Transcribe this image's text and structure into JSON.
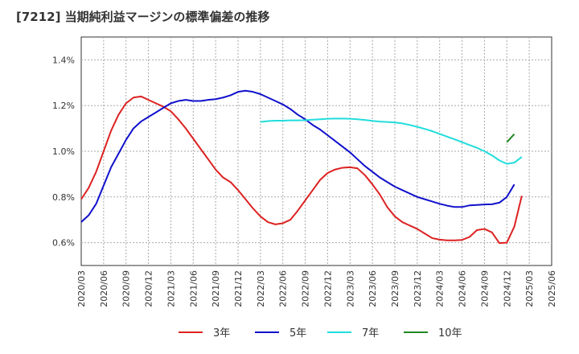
{
  "chart_data": {
    "type": "line",
    "title": "[7212]  当期純利益マージンの標準偏差の推移",
    "xlabel": "",
    "ylabel": "",
    "ylim": [
      0.5,
      1.5
    ],
    "y_ticks": [
      0.6,
      0.8,
      1.0,
      1.2,
      1.4
    ],
    "y_tick_labels": [
      "0.6%",
      "0.8%",
      "1.0%",
      "1.2%",
      "1.4%"
    ],
    "x_tick_labels": [
      "2020/03",
      "2020/06",
      "2020/09",
      "2020/12",
      "2021/03",
      "2021/06",
      "2021/09",
      "2021/12",
      "2022/03",
      "2022/06",
      "2022/09",
      "2022/12",
      "2023/03",
      "2023/06",
      "2023/09",
      "2023/12",
      "2024/03",
      "2024/06",
      "2024/09",
      "2024/12",
      "2025/03",
      "2025/06"
    ],
    "grid": true,
    "legend_position": "bottom",
    "x_start": "2020/03",
    "series": [
      {
        "name": "3年",
        "color": "#dd2222",
        "start": "2020/03",
        "values": [
          0.79,
          0.84,
          0.91,
          1.0,
          1.09,
          1.16,
          1.21,
          1.235,
          1.24,
          1.225,
          1.21,
          1.195,
          1.175,
          1.14,
          1.1,
          1.055,
          1.01,
          0.965,
          0.92,
          0.885,
          0.865,
          0.83,
          0.79,
          0.75,
          0.715,
          0.69,
          0.68,
          0.685,
          0.7,
          0.74,
          0.785,
          0.83,
          0.875,
          0.905,
          0.92,
          0.928,
          0.93,
          0.925,
          0.895,
          0.855,
          0.81,
          0.755,
          0.715,
          0.69,
          0.675,
          0.66,
          0.64,
          0.62,
          0.613,
          0.61,
          0.61,
          0.612,
          0.625,
          0.655,
          0.66,
          0.645,
          0.598,
          0.6,
          0.67,
          0.805
        ]
      },
      {
        "name": "5年",
        "color": "#1111cc",
        "start": "2020/03",
        "values": [
          0.69,
          0.72,
          0.77,
          0.85,
          0.93,
          0.99,
          1.05,
          1.1,
          1.13,
          1.15,
          1.17,
          1.19,
          1.21,
          1.22,
          1.225,
          1.22,
          1.22,
          1.225,
          1.228,
          1.235,
          1.245,
          1.26,
          1.265,
          1.26,
          1.25,
          1.235,
          1.22,
          1.205,
          1.185,
          1.16,
          1.14,
          1.115,
          1.095,
          1.07,
          1.045,
          1.02,
          0.995,
          0.965,
          0.935,
          0.91,
          0.885,
          0.865,
          0.845,
          0.83,
          0.815,
          0.8,
          0.79,
          0.78,
          0.77,
          0.762,
          0.756,
          0.756,
          0.763,
          0.765,
          0.767,
          0.768,
          0.775,
          0.8,
          0.855
        ]
      },
      {
        "name": "7年",
        "color": "#22dddd",
        "start": "2022/03",
        "values": [
          1.128,
          1.132,
          1.134,
          1.134,
          1.135,
          1.135,
          1.136,
          1.138,
          1.14,
          1.142,
          1.143,
          1.143,
          1.142,
          1.14,
          1.137,
          1.133,
          1.13,
          1.128,
          1.126,
          1.122,
          1.115,
          1.107,
          1.098,
          1.088,
          1.076,
          1.064,
          1.052,
          1.04,
          1.027,
          1.015,
          1.0,
          0.982,
          0.96,
          0.945,
          0.95,
          0.975
        ]
      },
      {
        "name": "10年",
        "color": "#228822",
        "start": "2024/12",
        "values": [
          1.04,
          1.075
        ]
      }
    ]
  }
}
